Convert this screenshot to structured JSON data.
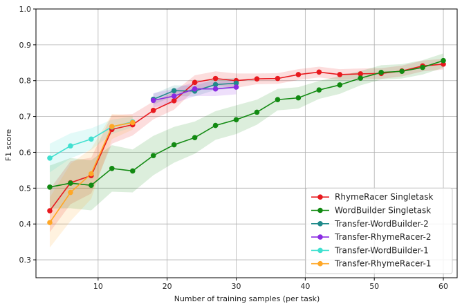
{
  "chart_data": {
    "type": "line",
    "title": "",
    "xlabel": "Number of training samples (per task)",
    "ylabel": "F1 score",
    "xlim": [
      1,
      62
    ],
    "ylim": [
      0.25,
      1.0
    ],
    "xticks": [
      10,
      20,
      30,
      40,
      50,
      60
    ],
    "yticks": [
      0.3,
      0.4,
      0.5,
      0.6,
      0.7,
      0.8,
      0.9,
      1.0
    ],
    "grid": true,
    "legend_position": "bottom-right",
    "series": [
      {
        "name": "RhymeRacer Singletask",
        "color": "#e8191e",
        "x": [
          3,
          6,
          9,
          12,
          15,
          18,
          21,
          24,
          27,
          30,
          33,
          36,
          39,
          42,
          45,
          48,
          51,
          54,
          57,
          60
        ],
        "y": [
          0.437,
          0.515,
          0.535,
          0.664,
          0.677,
          0.717,
          0.744,
          0.795,
          0.806,
          0.8,
          0.805,
          0.806,
          0.817,
          0.824,
          0.817,
          0.819,
          0.82,
          0.827,
          0.841,
          0.846
        ],
        "band": [
          0.06,
          0.06,
          0.05,
          0.04,
          0.03,
          0.025,
          0.025,
          0.02,
          0.02,
          0.02,
          0.015,
          0.015,
          0.015,
          0.015,
          0.015,
          0.015,
          0.015,
          0.015,
          0.015,
          0.015
        ]
      },
      {
        "name": "WordBuilder Singletask",
        "color": "#128a12",
        "x": [
          3,
          6,
          9,
          12,
          15,
          18,
          21,
          24,
          27,
          30,
          33,
          36,
          39,
          42,
          45,
          48,
          51,
          54,
          57,
          60
        ],
        "y": [
          0.503,
          0.514,
          0.508,
          0.555,
          0.548,
          0.591,
          0.621,
          0.641,
          0.675,
          0.691,
          0.712,
          0.747,
          0.752,
          0.774,
          0.788,
          0.807,
          0.823,
          0.826,
          0.837,
          0.856
        ],
        "band": [
          0.06,
          0.07,
          0.07,
          0.065,
          0.06,
          0.055,
          0.05,
          0.045,
          0.04,
          0.04,
          0.035,
          0.03,
          0.03,
          0.025,
          0.025,
          0.02,
          0.02,
          0.02,
          0.02,
          0.02
        ]
      },
      {
        "name": "Transfer-WordBuilder-2",
        "color": "#1f8a8a",
        "x": [
          18,
          21,
          24,
          27,
          30
        ],
        "y": [
          0.748,
          0.772,
          0.771,
          0.789,
          0.793
        ],
        "band": [
          0.015,
          0.015,
          0.015,
          0.015,
          0.015
        ]
      },
      {
        "name": "Transfer-RhymeRacer-2",
        "color": "#8a2be2",
        "x": [
          18,
          21,
          24,
          27,
          30
        ],
        "y": [
          0.745,
          0.757,
          0.777,
          0.777,
          0.782
        ],
        "band": [
          0.02,
          0.02,
          0.02,
          0.02,
          0.02
        ]
      },
      {
        "name": "Transfer-WordBuilder-1",
        "color": "#40e0d0",
        "x": [
          3,
          6,
          9,
          12,
          15
        ],
        "y": [
          0.584,
          0.618,
          0.637,
          0.671,
          0.685
        ],
        "band": [
          0.04,
          0.035,
          0.03,
          0.02,
          0.015
        ]
      },
      {
        "name": "Transfer-RhymeRacer-1",
        "color": "#ffa726",
        "x": [
          3,
          6,
          9,
          12,
          15
        ],
        "y": [
          0.404,
          0.488,
          0.54,
          0.672,
          0.683
        ],
        "band": [
          0.07,
          0.08,
          0.07,
          0.035,
          0.02
        ]
      }
    ]
  }
}
